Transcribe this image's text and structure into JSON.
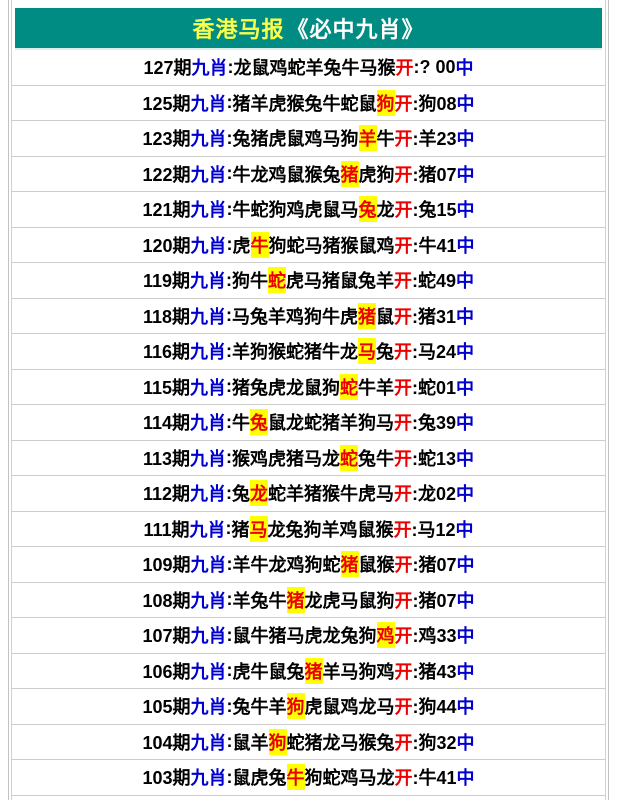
{
  "header": {
    "title_left": "香港马报",
    "title_right": "《必中九肖》"
  },
  "labels": {
    "tag": "九肖",
    "colon": ":",
    "kai": "开",
    "zhong": "中"
  },
  "colors": {
    "header_bg": "#008C82",
    "title_yellow": "#FAFF4D",
    "title_white": "#FFFFFF",
    "blue_text": "#0000CE",
    "red_text": "#EE0000",
    "highlight_bg": "#FFFF00",
    "row_divider": "#CCCCCC"
  },
  "rows": [
    {
      "period": "127期",
      "zodiacs": "龙鼠鸡蛇羊兔牛马猴",
      "hl": -1,
      "result": "? 00"
    },
    {
      "period": "125期",
      "zodiacs": "猪羊虎猴兔牛蛇鼠狗",
      "hl": 8,
      "result": "狗08"
    },
    {
      "period": "123期",
      "zodiacs": "兔猪虎鼠鸡马狗羊牛",
      "hl": 7,
      "result": "羊23"
    },
    {
      "period": "122期",
      "zodiacs": "牛龙鸡鼠猴兔猪虎狗",
      "hl": 6,
      "result": "猪07"
    },
    {
      "period": "121期",
      "zodiacs": "牛蛇狗鸡虎鼠马兔龙",
      "hl": 7,
      "result": "兔15"
    },
    {
      "period": "120期",
      "zodiacs": "虎牛狗蛇马猪猴鼠鸡",
      "hl": 1,
      "result": "牛41"
    },
    {
      "period": "119期",
      "zodiacs": "狗牛蛇虎马猪鼠兔羊",
      "hl": 2,
      "result": "蛇49"
    },
    {
      "period": "118期",
      "zodiacs": "马兔羊鸡狗牛虎猪鼠",
      "hl": 7,
      "result": "猪31"
    },
    {
      "period": "116期",
      "zodiacs": "羊狗猴蛇猪牛龙马兔",
      "hl": 7,
      "result": "马24"
    },
    {
      "period": "115期",
      "zodiacs": "猪兔虎龙鼠狗蛇牛羊",
      "hl": 6,
      "result": "蛇01"
    },
    {
      "period": "114期",
      "zodiacs": "牛兔鼠龙蛇猪羊狗马",
      "hl": 1,
      "result": "兔39"
    },
    {
      "period": "113期",
      "zodiacs": "猴鸡虎猪马龙蛇兔牛",
      "hl": 6,
      "result": "蛇13"
    },
    {
      "period": "112期",
      "zodiacs": "兔龙蛇羊猪猴牛虎马",
      "hl": 1,
      "result": "龙02"
    },
    {
      "period": "111期",
      "zodiacs": "猪马龙兔狗羊鸡鼠猴",
      "hl": 1,
      "result": "马12"
    },
    {
      "period": "109期",
      "zodiacs": "羊牛龙鸡狗蛇猪鼠猴",
      "hl": 6,
      "result": "猪07"
    },
    {
      "period": "108期",
      "zodiacs": "羊兔牛猪龙虎马鼠狗",
      "hl": 3,
      "result": "猪07"
    },
    {
      "period": "107期",
      "zodiacs": "鼠牛猪马虎龙兔狗鸡",
      "hl": 8,
      "result": "鸡33"
    },
    {
      "period": "106期",
      "zodiacs": "虎牛鼠兔猪羊马狗鸡",
      "hl": 4,
      "result": "猪43"
    },
    {
      "period": "105期",
      "zodiacs": "兔牛羊狗虎鼠鸡龙马",
      "hl": 3,
      "result": "狗44"
    },
    {
      "period": "104期",
      "zodiacs": "鼠羊狗蛇猪龙马猴兔",
      "hl": 2,
      "result": "狗32"
    },
    {
      "period": "103期",
      "zodiacs": "鼠虎兔牛狗蛇鸡马龙",
      "hl": 3,
      "result": "牛41"
    }
  ]
}
